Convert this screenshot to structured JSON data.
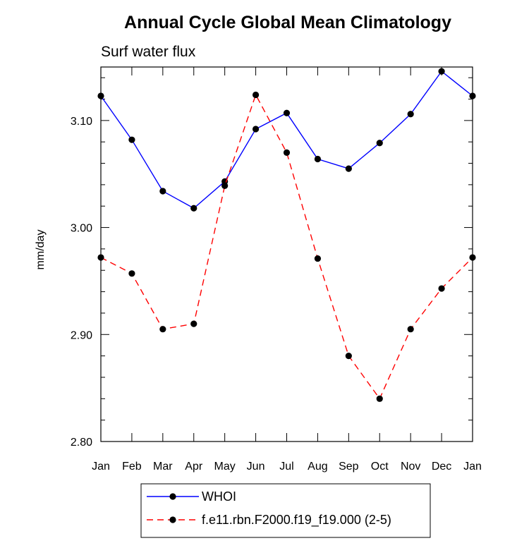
{
  "chart_data": {
    "type": "line",
    "title": "Annual Cycle Global Mean Climatology",
    "subtitle": "Surf water flux",
    "xlabel": "",
    "ylabel": "mm/day",
    "ylim": [
      2.8,
      3.15
    ],
    "yticks": [
      "3.10",
      "3.00",
      "2.90",
      "2.80"
    ],
    "ytick_values": [
      3.1,
      3.0,
      2.9,
      2.8
    ],
    "categories": [
      "Jan",
      "Feb",
      "Mar",
      "Apr",
      "May",
      "Jun",
      "Jul",
      "Aug",
      "Sep",
      "Oct",
      "Nov",
      "Dec",
      "Jan"
    ],
    "legend_position": "bottom-center",
    "series": [
      {
        "name": "WHOI",
        "color": "#0000ff",
        "line_style": "solid",
        "values": [
          3.123,
          3.082,
          3.034,
          3.018,
          3.043,
          3.092,
          3.107,
          3.064,
          3.055,
          3.079,
          3.106,
          3.146,
          3.123
        ]
      },
      {
        "name": "f.e11.rbn.F2000.f19_f19.000 (2-5)",
        "color": "#ff0000",
        "line_style": "dashed",
        "values": [
          2.972,
          2.957,
          2.905,
          2.91,
          3.039,
          3.124,
          3.07,
          2.971,
          2.88,
          2.84,
          2.905,
          2.943,
          2.972
        ]
      }
    ]
  }
}
